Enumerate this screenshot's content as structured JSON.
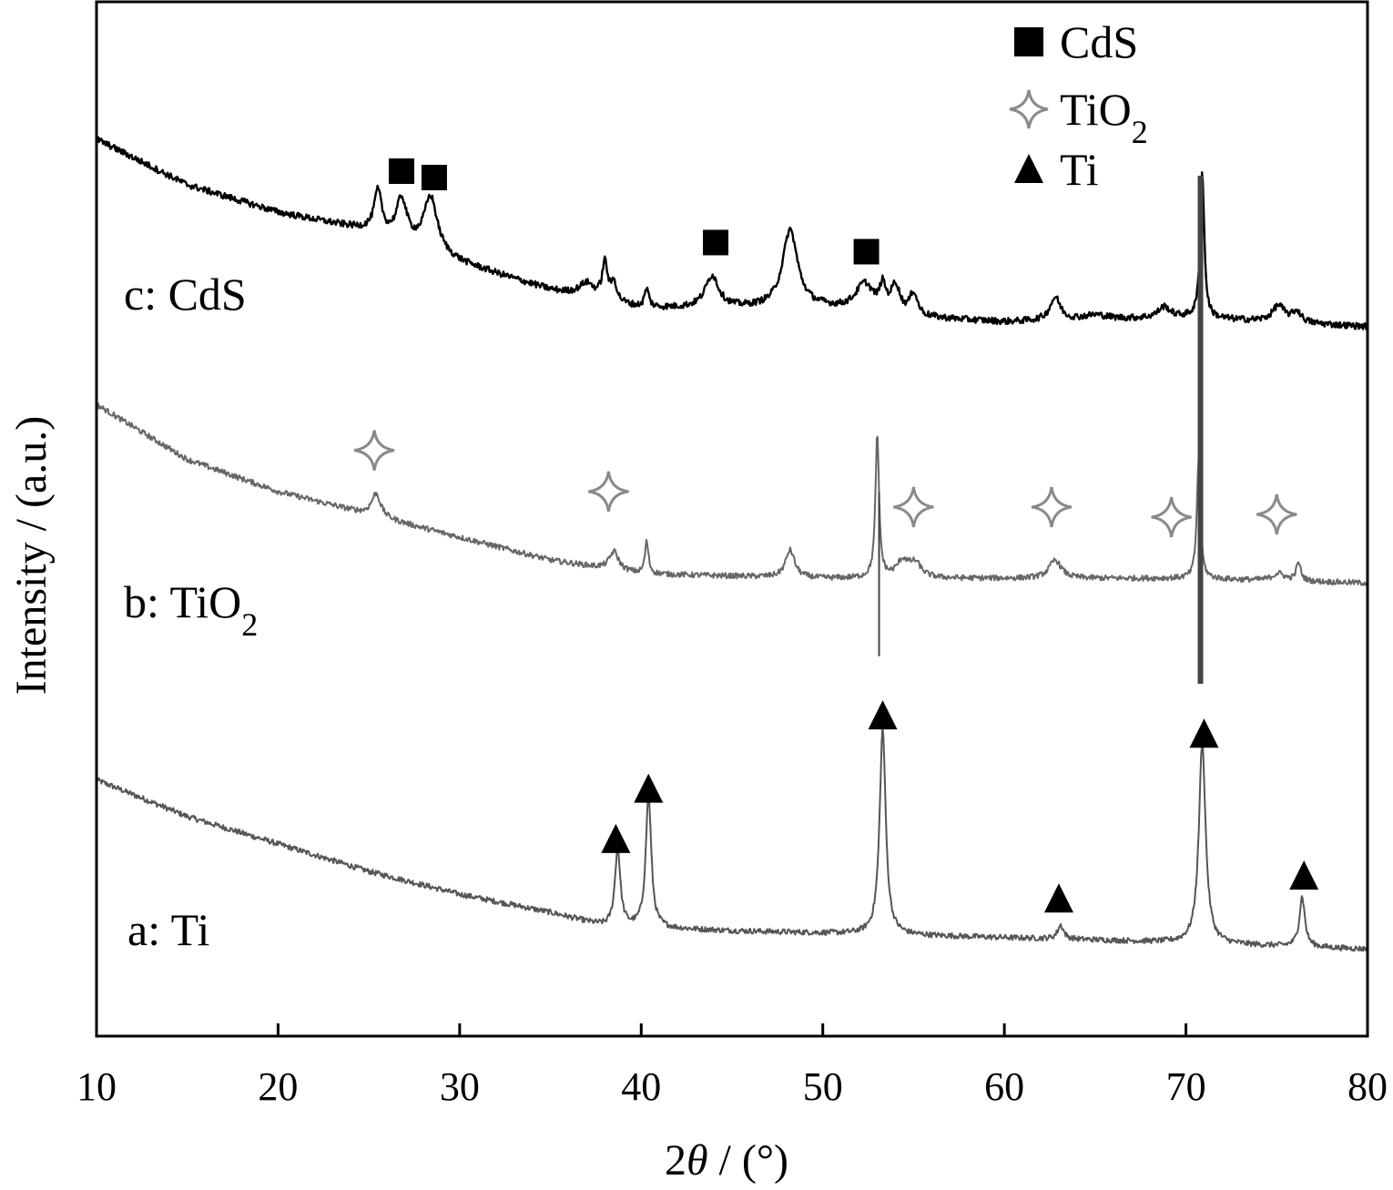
{
  "chart_data": {
    "type": "line",
    "title": "",
    "xlabel_num": "2",
    "xlabel_theta": "θ",
    "xlabel_unit": " / (°)",
    "ylabel": "Intensity / (a.u.)",
    "xlim": [
      10,
      80
    ],
    "ylim": [
      0,
      11.3
    ],
    "x_ticks": [
      10,
      20,
      30,
      40,
      50,
      60,
      70,
      80
    ],
    "grid": false,
    "legend_position": "top-right",
    "legend": [
      {
        "marker": "square",
        "label": "CdS",
        "color": "#000000"
      },
      {
        "marker": "star4",
        "label": "TiO",
        "sub": "2",
        "color": "#8a8a8a"
      },
      {
        "marker": "triangle",
        "label": "Ti",
        "color": "#000000"
      }
    ],
    "series": [
      {
        "curve_label": "a: Ti",
        "color": "#555555",
        "baseline": [
          [
            10,
            2.8
          ],
          [
            15,
            2.4
          ],
          [
            20,
            2.1
          ],
          [
            25,
            1.8
          ],
          [
            30,
            1.55
          ],
          [
            35,
            1.35
          ],
          [
            38,
            1.2
          ],
          [
            45,
            1.15
          ],
          [
            55,
            1.1
          ],
          [
            65,
            1.05
          ],
          [
            80,
            0.95
          ]
        ],
        "peaks": [
          {
            "x": 38.7,
            "h": 0.85,
            "w": 0.18
          },
          {
            "x": 40.4,
            "h": 1.45,
            "w": 0.18
          },
          {
            "x": 53.3,
            "h": 2.25,
            "w": 0.2
          },
          {
            "x": 63.1,
            "h": 0.15,
            "w": 0.2
          },
          {
            "x": 70.9,
            "h": 2.2,
            "w": 0.22
          },
          {
            "x": 76.4,
            "h": 0.55,
            "w": 0.18
          }
        ],
        "markers": [
          {
            "x": 38.6,
            "y": 2.15,
            "shape": "triangle"
          },
          {
            "x": 40.4,
            "y": 2.7,
            "shape": "triangle"
          },
          {
            "x": 53.3,
            "y": 3.5,
            "shape": "triangle"
          },
          {
            "x": 63.0,
            "y": 1.5,
            "shape": "triangle"
          },
          {
            "x": 71.0,
            "y": 3.3,
            "shape": "triangle"
          },
          {
            "x": 76.5,
            "y": 1.75,
            "shape": "triangle"
          }
        ]
      },
      {
        "curve_label": "b: TiO",
        "curve_label_sub": "2",
        "color": "#666666",
        "baseline": [
          [
            10,
            6.9
          ],
          [
            15,
            6.3
          ],
          [
            20,
            5.95
          ],
          [
            25,
            5.7
          ],
          [
            30,
            5.45
          ],
          [
            35,
            5.2
          ],
          [
            40,
            5.05
          ],
          [
            50,
            5.0
          ],
          [
            60,
            5.0
          ],
          [
            70,
            5.0
          ],
          [
            80,
            4.95
          ]
        ],
        "peaks": [
          {
            "x": 25.4,
            "h": 0.25,
            "w": 0.3
          },
          {
            "x": 38.5,
            "h": 0.2,
            "w": 0.3
          },
          {
            "x": 40.3,
            "h": 0.35,
            "w": 0.12
          },
          {
            "x": 48.2,
            "h": 0.3,
            "w": 0.3
          },
          {
            "x": 53.0,
            "h": 1.55,
            "w": 0.12
          },
          {
            "x": 54.4,
            "h": 0.18,
            "w": 0.4
          },
          {
            "x": 55.1,
            "h": 0.15,
            "w": 0.4
          },
          {
            "x": 62.8,
            "h": 0.2,
            "w": 0.4
          },
          {
            "x": 70.7,
            "h": 1.3,
            "w": 0.12
          },
          {
            "x": 75.1,
            "h": 0.08,
            "w": 0.4
          },
          {
            "x": 76.2,
            "h": 0.2,
            "w": 0.15
          }
        ],
        "markers": [
          {
            "x": 25.3,
            "y": 6.4,
            "shape": "star4"
          },
          {
            "x": 38.2,
            "y": 5.95,
            "shape": "star4"
          },
          {
            "x": 55.0,
            "y": 5.78,
            "shape": "star4"
          },
          {
            "x": 62.6,
            "y": 5.78,
            "shape": "star4"
          },
          {
            "x": 69.2,
            "y": 5.67,
            "shape": "star4"
          },
          {
            "x": 75.0,
            "y": 5.7,
            "shape": "star4"
          }
        ]
      },
      {
        "curve_label": "c: CdS",
        "color": "#000000",
        "baseline": [
          [
            10,
            9.8
          ],
          [
            15,
            9.3
          ],
          [
            20,
            9.0
          ],
          [
            25,
            8.8
          ],
          [
            30,
            8.45
          ],
          [
            35,
            8.15
          ],
          [
            40,
            7.95
          ],
          [
            45,
            7.95
          ],
          [
            50,
            7.95
          ],
          [
            55,
            7.85
          ],
          [
            60,
            7.8
          ],
          [
            70,
            7.85
          ],
          [
            80,
            7.75
          ]
        ],
        "peaks": [
          {
            "x": 25.5,
            "h": 0.45,
            "w": 0.25
          },
          {
            "x": 26.8,
            "h": 0.45,
            "w": 0.35
          },
          {
            "x": 28.4,
            "h": 0.6,
            "w": 0.45
          },
          {
            "x": 37.0,
            "h": 0.15,
            "w": 0.5
          },
          {
            "x": 38.0,
            "h": 0.4,
            "w": 0.18
          },
          {
            "x": 38.5,
            "h": 0.2,
            "w": 0.18
          },
          {
            "x": 40.3,
            "h": 0.2,
            "w": 0.15
          },
          {
            "x": 43.9,
            "h": 0.35,
            "w": 0.45
          },
          {
            "x": 48.2,
            "h": 0.85,
            "w": 0.5
          },
          {
            "x": 52.3,
            "h": 0.3,
            "w": 0.6
          },
          {
            "x": 53.3,
            "h": 0.25,
            "w": 0.2
          },
          {
            "x": 54.0,
            "h": 0.3,
            "w": 0.3
          },
          {
            "x": 55.0,
            "h": 0.25,
            "w": 0.25
          },
          {
            "x": 62.8,
            "h": 0.25,
            "w": 0.35
          },
          {
            "x": 65.0,
            "h": 0.05,
            "w": 0.8
          },
          {
            "x": 68.8,
            "h": 0.12,
            "w": 0.4
          },
          {
            "x": 70.9,
            "h": 1.6,
            "w": 0.13
          },
          {
            "x": 75.1,
            "h": 0.18,
            "w": 0.4
          },
          {
            "x": 76.1,
            "h": 0.12,
            "w": 0.3
          }
        ],
        "markers": [
          {
            "x": 26.8,
            "y": 9.45,
            "shape": "square"
          },
          {
            "x": 28.6,
            "y": 9.38,
            "shape": "square"
          },
          {
            "x": 44.1,
            "y": 8.67,
            "shape": "square"
          },
          {
            "x": 52.4,
            "y": 8.57,
            "shape": "square"
          }
        ]
      }
    ],
    "overlay_lines": [
      {
        "x": 53.1,
        "y_from": 5.95,
        "y_to": 4.15,
        "color": "#444444",
        "width": 2
      },
      {
        "x": 70.8,
        "y_from": 9.4,
        "y_to": 3.85,
        "color": "#444444",
        "width": 6
      }
    ]
  }
}
